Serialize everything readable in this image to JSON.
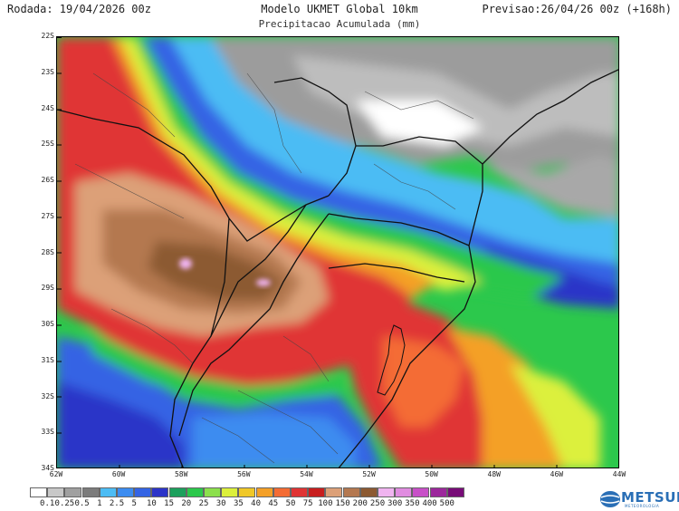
{
  "header": {
    "run": "Rodada: 19/04/2026 00z",
    "model": "Modelo UKMET Global 10km",
    "product": "Precipitacao Acumulada (mm)",
    "forecast": "Previsao:26/04/26 00z (+168h)"
  },
  "map": {
    "lat_labels": [
      "22S",
      "23S",
      "24S",
      "25S",
      "26S",
      "27S",
      "28S",
      "29S",
      "30S",
      "31S",
      "32S",
      "33S",
      "34S"
    ],
    "lon_labels": [
      "62W",
      "60W",
      "58W",
      "56W",
      "54W",
      "52W",
      "50W",
      "48W",
      "46W",
      "44W"
    ],
    "lat_range": [
      -34,
      -22
    ],
    "lon_range": [
      -62,
      -44
    ]
  },
  "legend": {
    "ticks": [
      "0.1",
      "0.25",
      "0.5",
      "1",
      "2.5",
      "5",
      "10",
      "15",
      "20",
      "25",
      "30",
      "35",
      "40",
      "45",
      "50",
      "75",
      "100",
      "150",
      "200",
      "250",
      "300",
      "350",
      "400",
      "500"
    ],
    "colors": [
      "#ffffff",
      "#c8c8c8",
      "#a0a0a0",
      "#7c7c7c",
      "#4cbcf4",
      "#3c8cf0",
      "#3464e4",
      "#2c34c8",
      "#1ca05c",
      "#2cc84c",
      "#8ce04c",
      "#dcf03c",
      "#f0c828",
      "#f4a028",
      "#f46c34",
      "#e03434",
      "#c81e1e",
      "#dca078",
      "#b47850",
      "#8c5a32",
      "#f0b4f0",
      "#e08ce0",
      "#c850c8",
      "#9c289c",
      "#780c78"
    ]
  },
  "logo": {
    "name": "METSUL",
    "subtitle": "METEOROLOGIA"
  }
}
